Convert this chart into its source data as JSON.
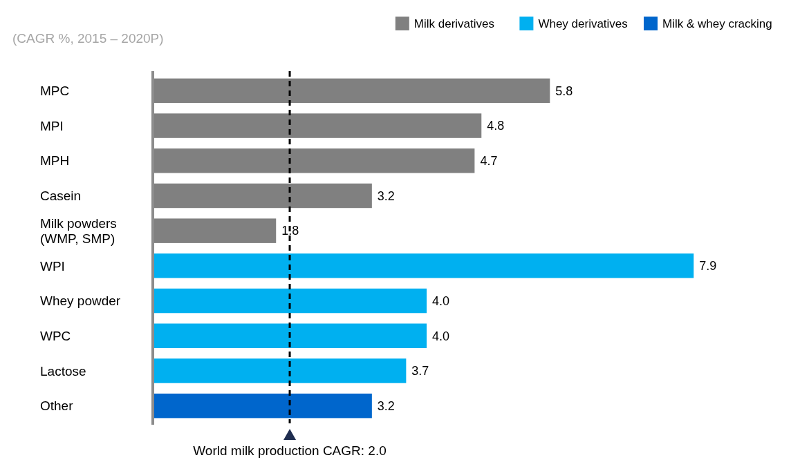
{
  "chart_data": {
    "type": "bar",
    "orientation": "horizontal",
    "title": "(CAGR %, 2015 – 2020P)",
    "categories": [
      "MPC",
      "MPI",
      "MPH",
      "Casein",
      "Milk powders (WMP, SMP)",
      "WPI",
      "Whey powder",
      "WPC",
      "Lactose",
      "Other"
    ],
    "series": [
      {
        "name": "Milk derivatives",
        "color": "#808080",
        "values": [
          5.8,
          4.8,
          4.7,
          3.2,
          1.8,
          null,
          null,
          null,
          null,
          null
        ],
        "value_labels": [
          "5.8",
          "4.8",
          "4.7",
          "3.2",
          "1.8",
          null,
          null,
          null,
          null,
          null
        ]
      },
      {
        "name": "Whey derivatives",
        "color": "#00b0f0",
        "values": [
          null,
          null,
          null,
          null,
          null,
          7.9,
          4.0,
          4.0,
          3.7,
          null
        ],
        "value_labels": [
          null,
          null,
          null,
          null,
          null,
          "7.9",
          "4.0",
          "4.0",
          "3.7",
          null
        ]
      },
      {
        "name": "Milk & whey cracking",
        "color": "#0066cc",
        "values": [
          null,
          null,
          null,
          null,
          null,
          null,
          null,
          null,
          null,
          3.2
        ],
        "value_labels": [
          null,
          null,
          null,
          null,
          null,
          null,
          null,
          null,
          null,
          "3.2"
        ]
      }
    ],
    "legend": "top right",
    "ref_lines": [
      {
        "axis": "x",
        "value": 2.0,
        "label": "World milk production CAGR: 2.0",
        "color": "#000000",
        "line_style": "dashed"
      }
    ]
  }
}
